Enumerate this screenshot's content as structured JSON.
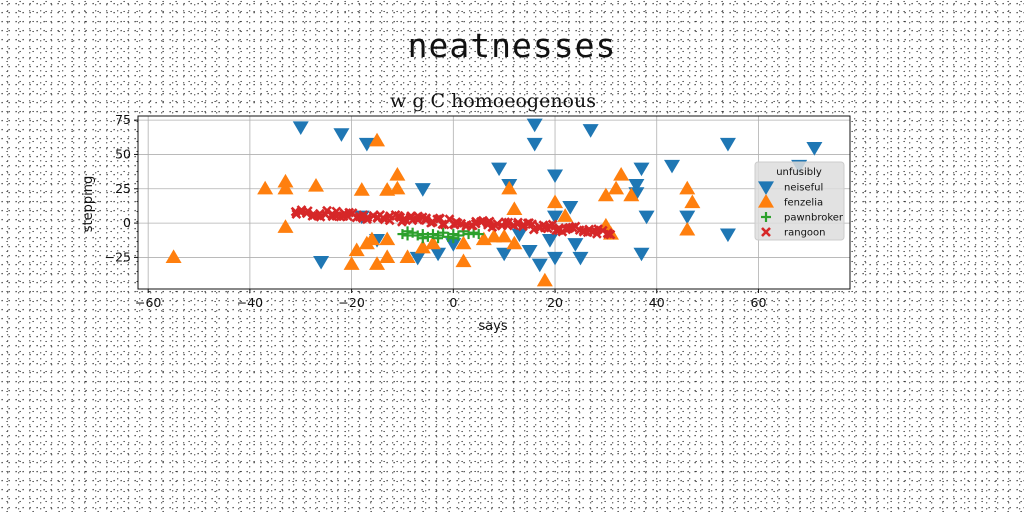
{
  "figure": {
    "suptitle": "neatnesses"
  },
  "chart_data": {
    "type": "scatter",
    "title": "w g C homoeogenous",
    "xlabel": "says",
    "ylabel": "stepping",
    "xlim": [
      -62,
      78
    ],
    "ylim": [
      -48,
      78
    ],
    "xticks": [
      -60,
      -40,
      -20,
      0,
      20,
      40,
      60
    ],
    "yticks": [
      -25,
      0,
      25,
      50,
      75
    ],
    "grid": true,
    "legend": {
      "title": "unfusibly",
      "placement": "right"
    },
    "series": [
      {
        "name": "neiseful",
        "marker": "triangle-down",
        "color": "#1f77b4",
        "points": [
          [
            -30,
            70
          ],
          [
            -22,
            65
          ],
          [
            -17,
            58
          ],
          [
            16,
            72
          ],
          [
            27,
            68
          ],
          [
            16,
            58
          ],
          [
            54,
            58
          ],
          [
            71,
            55
          ],
          [
            68,
            42
          ],
          [
            37,
            40
          ],
          [
            43,
            42
          ],
          [
            9,
            40
          ],
          [
            -6,
            25
          ],
          [
            11,
            28
          ],
          [
            20,
            35
          ],
          [
            36,
            28
          ],
          [
            36,
            22
          ],
          [
            23,
            12
          ],
          [
            38,
            5
          ],
          [
            46,
            5
          ],
          [
            54,
            -8
          ],
          [
            -26,
            -28
          ],
          [
            -18,
            5
          ],
          [
            10,
            -22
          ],
          [
            17,
            -30
          ],
          [
            20,
            -25
          ],
          [
            25,
            -25
          ],
          [
            37,
            -22
          ],
          [
            -3,
            -22
          ],
          [
            -7,
            -25
          ],
          [
            -15,
            -12
          ],
          [
            0,
            -15
          ],
          [
            15,
            -20
          ],
          [
            19,
            -12
          ],
          [
            13,
            -8
          ],
          [
            20,
            5
          ],
          [
            24,
            -15
          ]
        ]
      },
      {
        "name": "fenzelia",
        "marker": "triangle-up",
        "color": "#ff7f0e",
        "points": [
          [
            -55,
            -25
          ],
          [
            -37,
            25
          ],
          [
            -33,
            30
          ],
          [
            -33,
            25
          ],
          [
            -27,
            27
          ],
          [
            -18,
            24
          ],
          [
            -15,
            60
          ],
          [
            -13,
            24
          ],
          [
            -11,
            35
          ],
          [
            -11,
            25
          ],
          [
            -33,
            -3
          ],
          [
            -19,
            -20
          ],
          [
            -17,
            -15
          ],
          [
            -16,
            -12
          ],
          [
            -13,
            -12
          ],
          [
            -15,
            -30
          ],
          [
            -13,
            -25
          ],
          [
            -9,
            -25
          ],
          [
            -6,
            -18
          ],
          [
            -20,
            -30
          ],
          [
            2,
            -28
          ],
          [
            2,
            -15
          ],
          [
            6,
            -12
          ],
          [
            8,
            -10
          ],
          [
            11,
            25
          ],
          [
            12,
            10
          ],
          [
            12,
            -15
          ],
          [
            20,
            15
          ],
          [
            22,
            5
          ],
          [
            30,
            20
          ],
          [
            32,
            25
          ],
          [
            33,
            35
          ],
          [
            35,
            20
          ],
          [
            30,
            -2
          ],
          [
            31,
            -8
          ],
          [
            46,
            25
          ],
          [
            47,
            15
          ],
          [
            46,
            -5
          ],
          [
            18,
            -42
          ],
          [
            10,
            -10
          ],
          [
            -4,
            -15
          ]
        ]
      },
      {
        "name": "pawnbroker",
        "marker": "plus",
        "color": "#2ca02c",
        "points": [
          [
            -10,
            -8
          ],
          [
            -9,
            -9
          ],
          [
            -8,
            -7
          ],
          [
            -7,
            -9
          ],
          [
            -6,
            -8
          ],
          [
            -5,
            -10
          ],
          [
            -4,
            -8
          ],
          [
            -3,
            -9
          ],
          [
            -2,
            -7
          ],
          [
            -1,
            -10
          ],
          [
            0,
            -8
          ],
          [
            1,
            -9
          ],
          [
            2,
            -6
          ],
          [
            3,
            -8
          ],
          [
            -9,
            -6
          ],
          [
            -6,
            -11
          ],
          [
            -3,
            -11
          ],
          [
            0,
            -11
          ],
          [
            4,
            -7
          ],
          [
            5,
            -8
          ]
        ]
      },
      {
        "name": "rangoon",
        "marker": "x",
        "color": "#d62728",
        "line": {
          "x_from": -31,
          "x_to": 31,
          "y_from": 8,
          "y_to": -6,
          "count": 120,
          "spread": 2.5
        }
      }
    ]
  }
}
